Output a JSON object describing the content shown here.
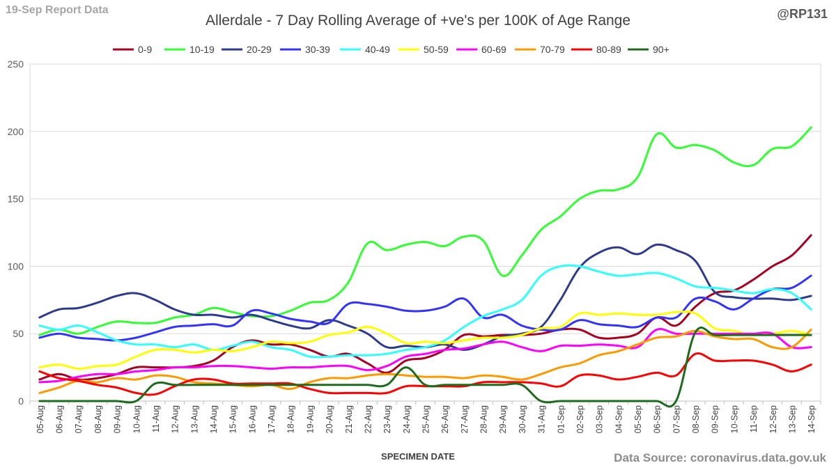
{
  "header": {
    "report_label": "19-Sep Report Data",
    "handle": "@RP131"
  },
  "footer": {
    "source": "Data Source: coronavirus.data.gov.uk"
  },
  "chart_data": {
    "type": "line",
    "title": "Allerdale - 7 Day Rolling Average of +ve's per 100K of Age Range",
    "xlabel": "SPECIMEN DATE",
    "ylabel": "",
    "ylim": [
      0,
      250
    ],
    "yticks": [
      0,
      50,
      100,
      150,
      200,
      250
    ],
    "legend_position": "top",
    "grid": "horizontal",
    "categories": [
      "05-Aug",
      "06-Aug",
      "07-Aug",
      "08-Aug",
      "09-Aug",
      "10-Aug",
      "11-Aug",
      "12-Aug",
      "13-Aug",
      "14-Aug",
      "15-Aug",
      "16-Aug",
      "17-Aug",
      "18-Aug",
      "19-Aug",
      "20-Aug",
      "21-Aug",
      "22-Aug",
      "23-Aug",
      "24-Aug",
      "25-Aug",
      "26-Aug",
      "27-Aug",
      "28-Aug",
      "29-Aug",
      "30-Aug",
      "31-Aug",
      "01-Sep",
      "02-Sep",
      "03-Sep",
      "04-Sep",
      "05-Sep",
      "06-Sep",
      "07-Sep",
      "08-Sep",
      "09-Sep",
      "10-Sep",
      "11-Sep",
      "12-Sep",
      "13-Sep",
      "14-Sep"
    ],
    "series": [
      {
        "name": "0-9",
        "color": "#a50021",
        "values": [
          16,
          20,
          16,
          17,
          20,
          25,
          25,
          25,
          26,
          30,
          40,
          45,
          42,
          42,
          38,
          33,
          35,
          28,
          21,
          30,
          32,
          38,
          49,
          48,
          49,
          49,
          50,
          53,
          53,
          47,
          47,
          50,
          62,
          56,
          70,
          80,
          82,
          90,
          100,
          108,
          123
        ]
      },
      {
        "name": "10-19",
        "color": "#33ff33",
        "values": [
          49,
          53,
          50,
          55,
          59,
          58,
          58,
          62,
          64,
          69,
          66,
          63,
          63,
          67,
          73,
          75,
          88,
          117,
          112,
          116,
          118,
          115,
          122,
          119,
          93,
          108,
          127,
          137,
          150,
          156,
          157,
          166,
          198,
          188,
          190,
          186,
          177,
          175,
          187,
          189,
          203
        ]
      },
      {
        "name": "20-29",
        "color": "#2e3a8c",
        "values": [
          62,
          68,
          69,
          73,
          78,
          80,
          75,
          68,
          64,
          64,
          62,
          64,
          60,
          56,
          54,
          60,
          56,
          50,
          40,
          41,
          40,
          42,
          38,
          42,
          48,
          50,
          55,
          75,
          99,
          110,
          114,
          109,
          116,
          112,
          104,
          81,
          77,
          76,
          76,
          75,
          78
        ]
      },
      {
        "name": "30-39",
        "color": "#3333ff",
        "values": [
          47,
          50,
          47,
          46,
          45,
          47,
          51,
          55,
          56,
          57,
          56,
          67,
          65,
          61,
          59,
          58,
          72,
          72,
          70,
          67,
          67,
          70,
          76,
          62,
          64,
          56,
          53,
          53,
          60,
          57,
          56,
          55,
          62,
          62,
          76,
          74,
          68,
          76,
          83,
          84,
          93
        ]
      },
      {
        "name": "40-49",
        "color": "#33ffff",
        "values": [
          56,
          53,
          56,
          51,
          45,
          42,
          42,
          40,
          42,
          38,
          41,
          44,
          40,
          38,
          33,
          33,
          34,
          34,
          35,
          38,
          40,
          45,
          55,
          63,
          68,
          75,
          93,
          100,
          100,
          96,
          93,
          94,
          95,
          91,
          85,
          84,
          82,
          80,
          83,
          80,
          68
        ]
      },
      {
        "name": "50-59",
        "color": "#ffff00",
        "values": [
          25,
          27,
          24,
          26,
          27,
          33,
          38,
          38,
          36,
          38,
          37,
          40,
          44,
          43,
          44,
          49,
          51,
          55,
          50,
          43,
          44,
          43,
          45,
          47,
          47,
          49,
          54,
          55,
          65,
          64,
          65,
          64,
          64,
          66,
          65,
          54,
          52,
          49,
          50,
          52,
          49
        ]
      },
      {
        "name": "60-69",
        "color": "#ff00ff",
        "values": [
          14,
          15,
          18,
          20,
          20,
          22,
          23,
          25,
          25,
          26,
          26,
          25,
          24,
          25,
          25,
          26,
          26,
          23,
          26,
          33,
          35,
          38,
          39,
          42,
          44,
          40,
          37,
          41,
          41,
          42,
          41,
          40,
          53,
          50,
          50,
          50,
          50,
          50,
          50,
          40,
          40
        ]
      },
      {
        "name": "70-79",
        "color": "#ff9900",
        "values": [
          6,
          10,
          15,
          14,
          17,
          16,
          19,
          18,
          14,
          13,
          12,
          11,
          12,
          9,
          14,
          17,
          17,
          19,
          20,
          19,
          18,
          18,
          17,
          19,
          18,
          16,
          20,
          25,
          28,
          34,
          37,
          42,
          47,
          48,
          52,
          48,
          46,
          46,
          40,
          40,
          53
        ]
      },
      {
        "name": "80-89",
        "color": "#ff0000",
        "values": [
          22,
          17,
          15,
          12,
          10,
          6,
          5,
          11,
          16,
          16,
          13,
          13,
          13,
          13,
          9,
          6,
          6,
          6,
          6,
          11,
          11,
          11,
          11,
          14,
          14,
          14,
          13,
          11,
          19,
          19,
          16,
          18,
          21,
          19,
          35,
          30,
          30,
          30,
          27,
          22,
          27
        ]
      },
      {
        "name": "90+",
        "color": "#1e6b1e",
        "values": [
          0,
          0,
          0,
          0,
          0,
          0,
          13,
          12,
          12,
          12,
          12,
          12,
          12,
          12,
          12,
          12,
          12,
          12,
          12,
          25,
          12,
          12,
          12,
          12,
          12,
          12,
          0,
          0,
          0,
          0,
          0,
          0,
          0,
          0,
          51,
          49,
          49,
          49,
          49,
          49,
          49
        ]
      }
    ]
  }
}
